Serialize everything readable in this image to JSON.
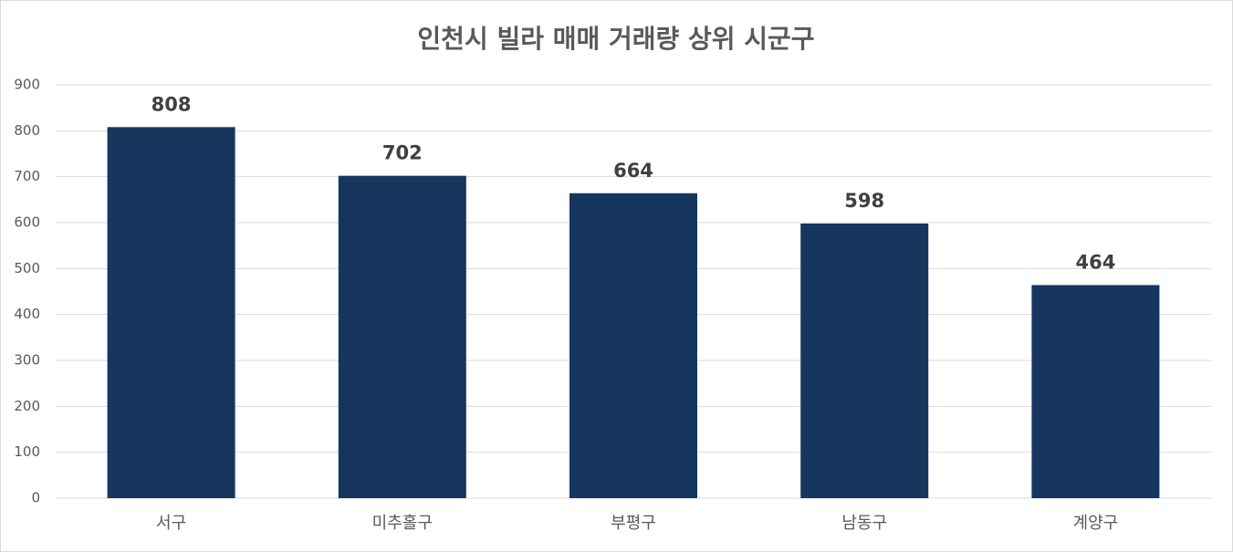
{
  "chart_data": {
    "type": "bar",
    "title": "인천시 빌라 매매 거래량 상위 시군구",
    "categories": [
      "서구",
      "미추홀구",
      "부평구",
      "남동구",
      "계양구"
    ],
    "values": [
      808,
      702,
      664,
      598,
      464
    ],
    "color": "#17365d",
    "ylim": [
      0,
      900
    ],
    "yticks": [
      0,
      100,
      200,
      300,
      400,
      500,
      600,
      700,
      800,
      900
    ],
    "grid": true
  }
}
